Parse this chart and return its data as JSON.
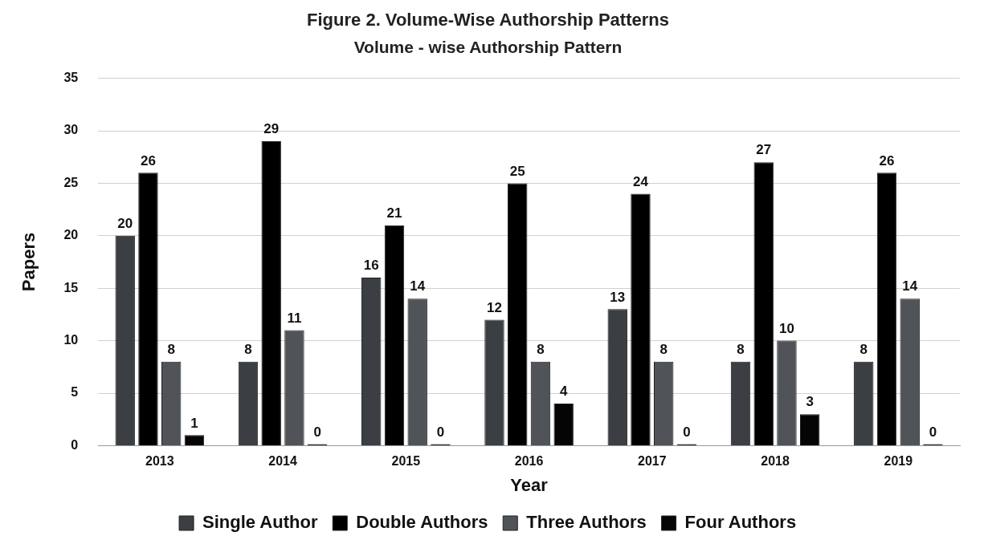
{
  "chart_data": {
    "type": "bar",
    "title": "Figure 2. Volume-Wise Authorship Patterns",
    "subtitle": "Volume - wise Authorship Pattern",
    "xlabel": "Year",
    "ylabel": "Papers",
    "categories": [
      "2013",
      "2014",
      "2015",
      "2016",
      "2017",
      "2018",
      "2019"
    ],
    "series": [
      {
        "name": "Single Author",
        "color": "#3b3e42",
        "values": [
          20,
          8,
          16,
          12,
          13,
          8,
          8
        ]
      },
      {
        "name": "Double Authors",
        "color": "#000000",
        "values": [
          26,
          29,
          21,
          25,
          24,
          27,
          26
        ]
      },
      {
        "name": "Three Authors",
        "color": "#505357",
        "values": [
          8,
          11,
          14,
          8,
          8,
          10,
          14
        ]
      },
      {
        "name": "Four Authors",
        "color": "#050505",
        "values": [
          1,
          0,
          0,
          4,
          0,
          3,
          0
        ]
      }
    ],
    "ylim": [
      0,
      35
    ],
    "yticks": [
      0,
      5,
      10,
      15,
      20,
      25,
      30,
      35
    ],
    "grid": "y",
    "legend": "bottom",
    "data_labels": true
  }
}
